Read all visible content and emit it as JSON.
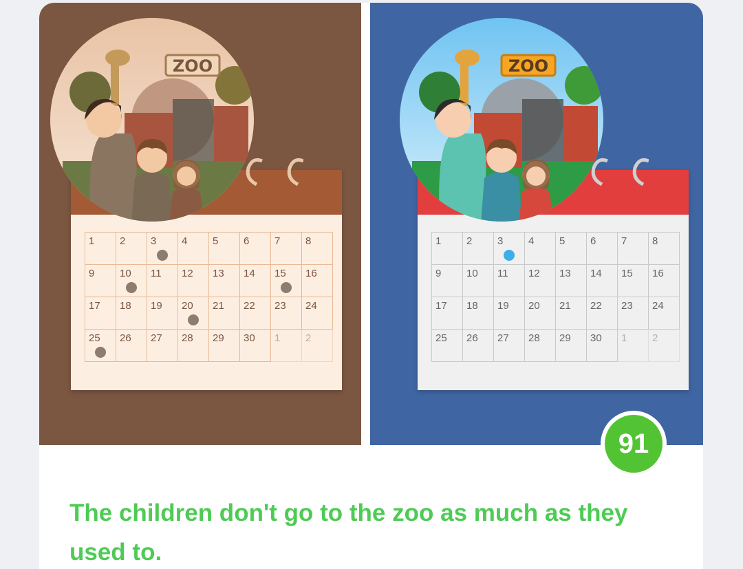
{
  "left_panel": {
    "sign": "ZOO",
    "calendar": {
      "rows": [
        [
          "1",
          "2",
          "3",
          "4",
          "5",
          "6",
          "7",
          "8"
        ],
        [
          "9",
          "10",
          "11",
          "12",
          "13",
          "14",
          "15",
          "16"
        ],
        [
          "17",
          "18",
          "19",
          "20",
          "21",
          "22",
          "23",
          "24"
        ],
        [
          "25",
          "26",
          "27",
          "28",
          "29",
          "30",
          "1",
          "2"
        ]
      ],
      "visited_days": [
        "3",
        "10",
        "15",
        "20",
        "25"
      ]
    }
  },
  "right_panel": {
    "sign": "ZOO",
    "calendar": {
      "rows": [
        [
          "1",
          "2",
          "3",
          "4",
          "5",
          "6",
          "7",
          "8"
        ],
        [
          "9",
          "10",
          "11",
          "12",
          "13",
          "14",
          "15",
          "16"
        ],
        [
          "17",
          "18",
          "19",
          "20",
          "21",
          "22",
          "23",
          "24"
        ],
        [
          "25",
          "26",
          "27",
          "28",
          "29",
          "30",
          "1",
          "2"
        ]
      ],
      "visited_days": [
        "3"
      ]
    }
  },
  "score": "91",
  "sentence": "The children don't go to the zoo as much as they used to.",
  "colors": {
    "left_bg": "#7b5641",
    "right_bg": "#3f65a2",
    "accent_green": "#4ecb55",
    "score_green": "#52c433"
  }
}
